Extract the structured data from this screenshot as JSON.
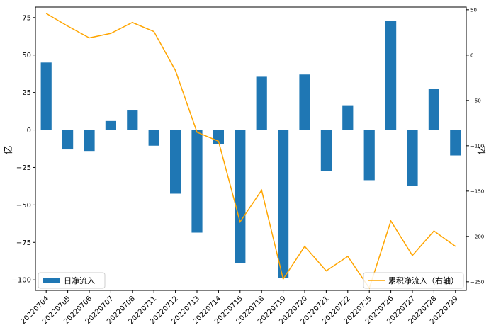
{
  "chart_data": {
    "type": "bar",
    "categories": [
      "20220704",
      "20220705",
      "20220706",
      "20220707",
      "20220708",
      "20220711",
      "20220712",
      "20220713",
      "20220714",
      "20220715",
      "20220718",
      "20220719",
      "20220720",
      "20220721",
      "20220722",
      "20220725",
      "20220726",
      "20220727",
      "20220728",
      "20220729"
    ],
    "series": [
      {
        "name": "日净流入",
        "type": "bar",
        "axis": "left",
        "color": "#1f77b4",
        "values": [
          45,
          -13,
          -14,
          6,
          13,
          -10.5,
          -42.5,
          -68.5,
          -9.5,
          -89,
          35.5,
          -98.5,
          37,
          -27.5,
          16.5,
          -33.5,
          73,
          -37.5,
          27.5,
          -17
        ]
      },
      {
        "name": "累积净流入（右轴）",
        "type": "line",
        "axis": "right",
        "color": "#ffa500",
        "values": [
          46,
          32,
          19,
          24,
          36,
          26,
          -17,
          -85,
          -95,
          -184,
          -149,
          -247,
          -211,
          -238,
          -222,
          -257,
          -183,
          -221,
          -194,
          -211
        ]
      }
    ],
    "ylabel": "亿",
    "y2label": "亿",
    "ylim": [
      -107,
      82
    ],
    "y2lim": [
      -259.5,
      53
    ],
    "yticks": [
      "75",
      "50",
      "25",
      "0",
      "−25",
      "−50",
      "−75",
      "−100"
    ],
    "ytick_values": [
      75,
      50,
      25,
      0,
      -25,
      -50,
      -75,
      -100
    ],
    "y2ticks": [
      "50",
      "0",
      "−50",
      "−100",
      "−150",
      "−200",
      "−250"
    ],
    "y2tick_values": [
      50,
      0,
      -50,
      -100,
      -150,
      -200,
      -250
    ],
    "legend_left": "日净流入",
    "legend_right": "累积净流入（右轴）",
    "legend_left_position": "lower-left",
    "legend_right_position": "lower-right"
  }
}
